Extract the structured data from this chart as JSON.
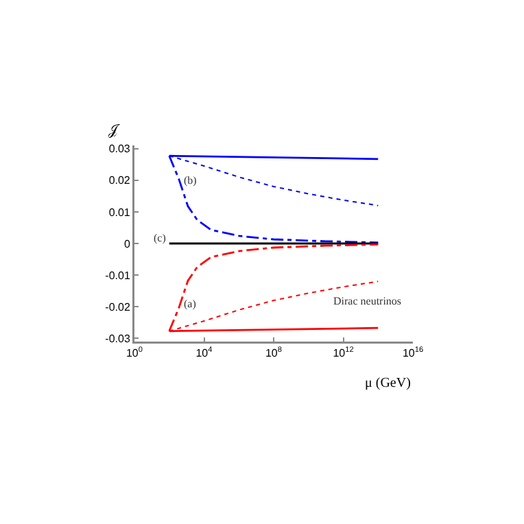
{
  "chart_data": {
    "type": "line",
    "xlabel": "μ (GeV)",
    "ylabel": "𝒥",
    "log": "x",
    "xlim": [
      1,
      1e+16
    ],
    "xticks": [
      {
        "value": 1,
        "label": "10$^{0}$"
      },
      {
        "value": 10000.0,
        "label": "10$^{4}$"
      },
      {
        "value": 100000000.0,
        "label": "10$^{8}$"
      },
      {
        "value": 1000000000000.0,
        "label": "10$^{12}$"
      },
      {
        "value": 1e+16,
        "label": "10$^{16}$"
      }
    ],
    "ylim": [
      -0.031,
      0.031
    ],
    "yticks": [
      -0.03,
      -0.02,
      -0.01,
      0,
      0.01,
      0.02,
      0.03
    ],
    "grid": false,
    "marker": "none",
    "series": [
      {
        "color": "#0000ff",
        "line_style": "solid",
        "x": [
          100,
          100000000000000.0
        ],
        "values": [
          0.0277,
          0.0267
        ]
      },
      {
        "color": "#0000ff",
        "line_style": "dotted",
        "x": [
          100,
          10000.0,
          1000000.0,
          100000000.0,
          10000000000.0,
          1000000000000.0,
          100000000000000.0
        ],
        "values": [
          0.0277,
          0.0245,
          0.021,
          0.018,
          0.0157,
          0.0137,
          0.012
        ]
      },
      {
        "color": "#0000ff",
        "line_style": "dashed",
        "x": [
          100,
          355,
          1175,
          3981,
          25119,
          1000000.0,
          100000000.0,
          100000000000.0,
          100000000000000.0
        ],
        "values": [
          0.0277,
          0.0204,
          0.0118,
          0.0075,
          0.0043,
          0.0024,
          0.0013,
          0.0007,
          0.0003
        ]
      },
      {
        "color": "#000000",
        "line_style": "solid",
        "x": [
          100,
          100000000000000.0
        ],
        "values": [
          0,
          0
        ]
      },
      {
        "color": "#ff0000",
        "line_style": "dashed",
        "x": [
          100,
          355,
          1175,
          3981,
          25119,
          1000000.0,
          100000000.0,
          100000000000.0,
          100000000000000.0
        ],
        "values": [
          -0.0277,
          -0.0204,
          -0.0118,
          -0.0075,
          -0.0043,
          -0.0024,
          -0.0013,
          -0.0007,
          -0.0003
        ]
      },
      {
        "color": "#ff0000",
        "line_style": "dotted",
        "x": [
          100,
          10000.0,
          1000000.0,
          100000000.0,
          10000000000.0,
          1000000000000.0,
          100000000000000.0
        ],
        "values": [
          -0.0277,
          -0.0245,
          -0.021,
          -0.018,
          -0.0157,
          -0.0137,
          -0.012
        ]
      },
      {
        "color": "#ff0000",
        "line_style": "solid",
        "x": [
          100,
          100000000000000.0
        ],
        "values": [
          -0.0277,
          -0.0267
        ]
      }
    ],
    "annotations": [
      "(b)",
      "(c)",
      "(a)",
      "Dirac neutrinos"
    ]
  }
}
